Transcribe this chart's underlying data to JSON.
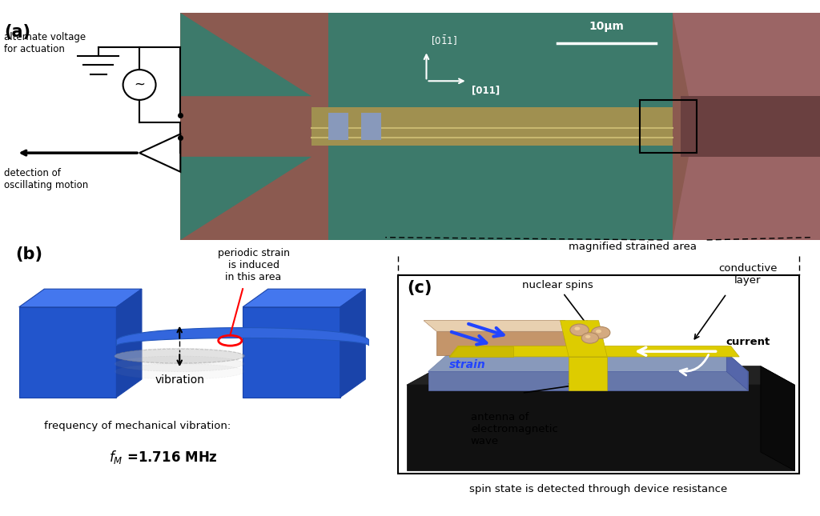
{
  "background_color": "#ffffff",
  "panel_a_label": "(a)",
  "panel_b_label": "(b)",
  "panel_c_label": "(c)",
  "panel_a_text_voltage": "alternate voltage\nfor actuation",
  "panel_a_text_detection": "detection of\noscillating motion",
  "panel_a_scalebar": "10μm",
  "panel_b_text_strain": "periodic strain\nis induced\nin this area",
  "panel_b_text_vibration": "vibration",
  "panel_b_text_freq": "frequency of mechanical vibration:",
  "panel_c_title": "magnified strained area",
  "panel_c_bottom": "spin state is detected through device resistance",
  "sem_bg_color": "#3d7a6b",
  "blue_main": "#2255cc",
  "blue_light": "#4477ee",
  "blue_dark": "#1a44aa",
  "yellow_wire": "#cccc00",
  "brown_sub": "#c4956a",
  "fig_width": 10.24,
  "fig_height": 6.45,
  "dpi": 100
}
